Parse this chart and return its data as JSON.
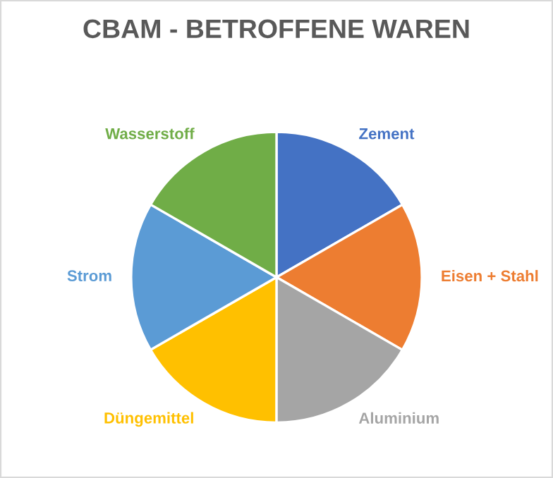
{
  "chart_data": {
    "type": "pie",
    "title": "CBAM - BETROFFENE WAREN",
    "categories": [
      "Zement",
      "Eisen + Stahl",
      "Aluminium",
      "Düngemittel",
      "Strom",
      "Wasserstoff"
    ],
    "values": [
      16.67,
      16.67,
      16.67,
      16.67,
      16.66,
      16.66
    ],
    "colors": [
      "#4472c4",
      "#ed7d31",
      "#a5a5a5",
      "#ffc000",
      "#5b9bd5",
      "#70ad47"
    ],
    "legend": false
  }
}
